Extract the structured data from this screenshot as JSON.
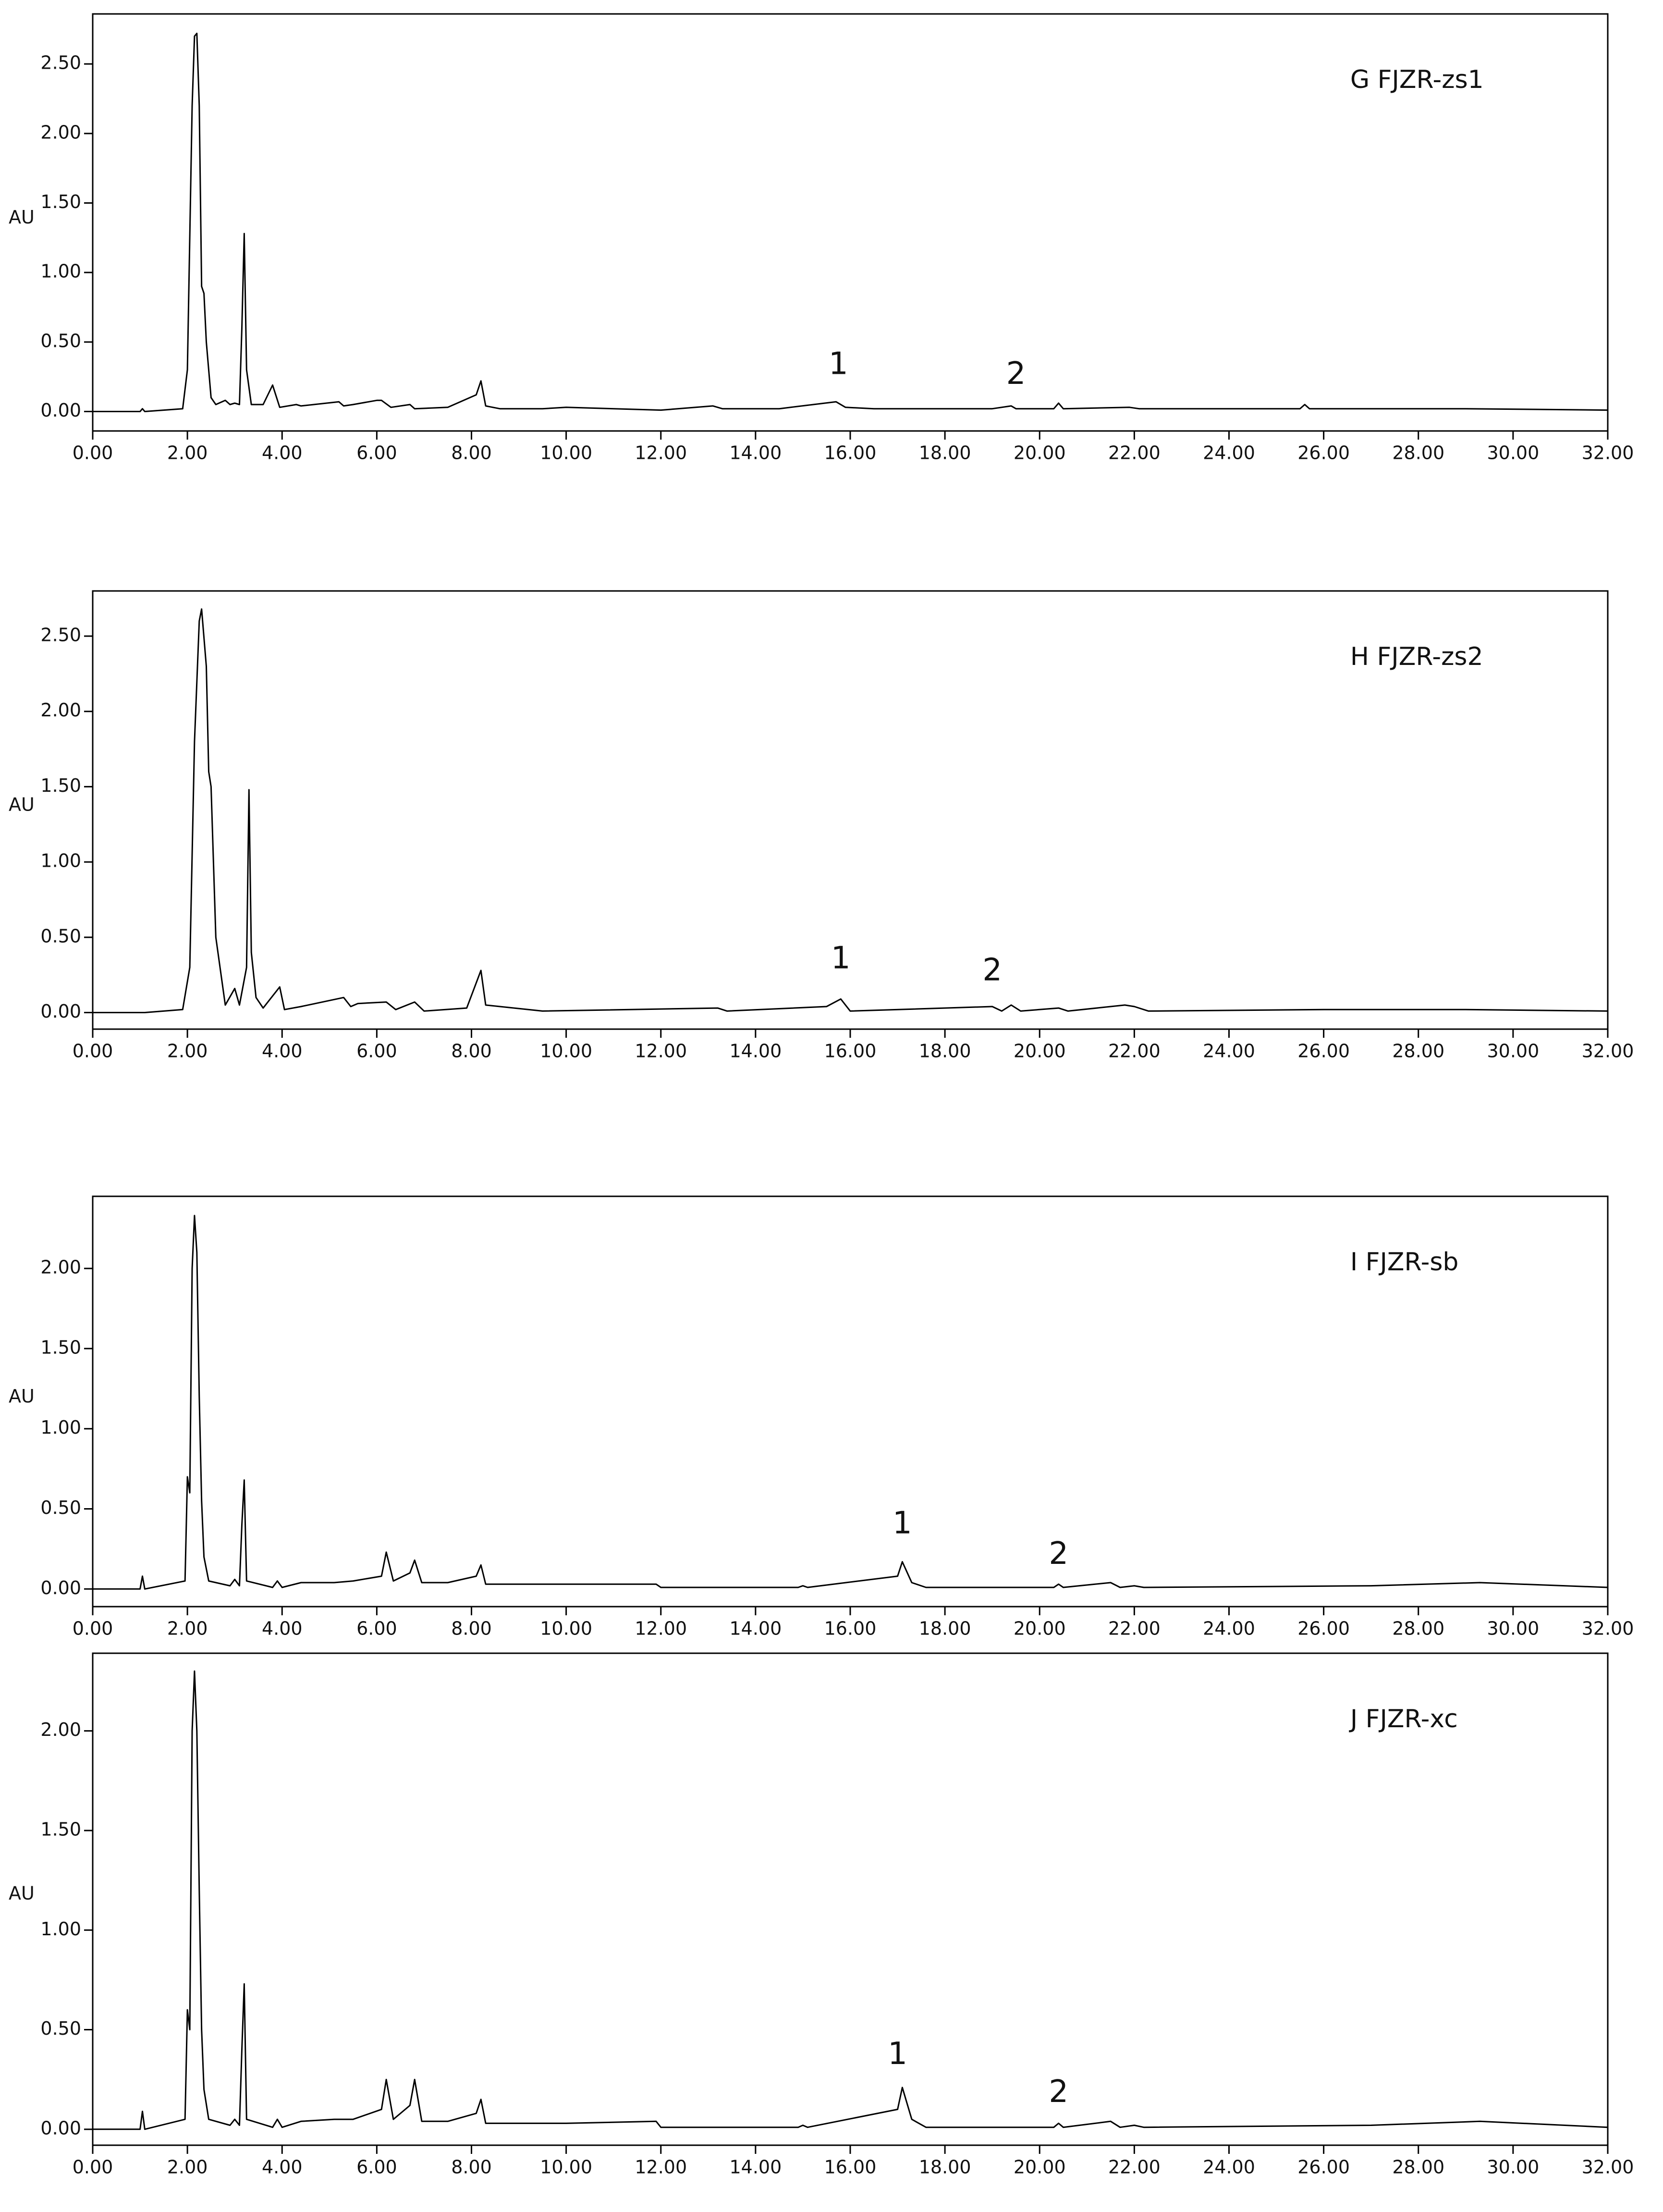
{
  "chart_data": [
    {
      "type": "line",
      "title": "G FJZR-zs1",
      "y_label": "AU",
      "color": "#000000",
      "x": [
        0,
        1.0,
        1.05,
        1.1,
        1.9,
        2.0,
        2.1,
        2.15,
        2.2,
        2.25,
        2.3,
        2.35,
        2.4,
        2.5,
        2.6,
        2.8,
        2.9,
        3.0,
        3.1,
        3.15,
        3.2,
        3.25,
        3.35,
        3.6,
        3.8,
        3.95,
        4.3,
        4.4,
        5.2,
        5.3,
        5.5,
        6.0,
        6.1,
        6.3,
        6.7,
        6.8,
        7.5,
        8.1,
        8.2,
        8.3,
        8.6,
        9.5,
        10.0,
        12.0,
        13.1,
        13.3,
        14.5,
        15.7,
        15.9,
        16.5,
        19.0,
        19.4,
        19.5,
        20.3,
        20.4,
        20.5,
        21.9,
        22.1,
        25.5,
        25.6,
        25.7,
        29.0,
        32.0
      ],
      "values": [
        0,
        0,
        0.02,
        0,
        0.02,
        0.3,
        2.2,
        2.7,
        2.72,
        2.2,
        0.9,
        0.85,
        0.5,
        0.1,
        0.05,
        0.08,
        0.05,
        0.06,
        0.05,
        0.6,
        1.28,
        0.3,
        0.05,
        0.05,
        0.19,
        0.03,
        0.05,
        0.04,
        0.07,
        0.04,
        0.05,
        0.08,
        0.08,
        0.03,
        0.05,
        0.02,
        0.03,
        0.12,
        0.22,
        0.04,
        0.02,
        0.02,
        0.03,
        0.01,
        0.04,
        0.02,
        0.02,
        0.07,
        0.03,
        0.02,
        0.02,
        0.04,
        0.02,
        0.02,
        0.06,
        0.02,
        0.03,
        0.02,
        0.02,
        0.05,
        0.02,
        0.02,
        0.01
      ],
      "annotations": [
        {
          "text": "1",
          "x": 15.75,
          "y": 0.33
        },
        {
          "text": "2",
          "x": 19.5,
          "y": 0.26
        }
      ],
      "xlim": [
        0,
        32
      ],
      "ylim": [
        -0.14,
        2.86
      ],
      "xticks": [
        {
          "value": 0,
          "label": "0.00"
        },
        {
          "value": 2,
          "label": "2.00"
        },
        {
          "value": 4,
          "label": "4.00"
        },
        {
          "value": 6,
          "label": "6.00"
        },
        {
          "value": 8,
          "label": "8.00"
        },
        {
          "value": 10,
          "label": "10.00"
        },
        {
          "value": 12,
          "label": "12.00"
        },
        {
          "value": 14,
          "label": "14.00"
        },
        {
          "value": 16,
          "label": "16.00"
        },
        {
          "value": 18,
          "label": "18.00"
        },
        {
          "value": 20,
          "label": "20.00"
        },
        {
          "value": 22,
          "label": "22.00"
        },
        {
          "value": 24,
          "label": "24.00"
        },
        {
          "value": 26,
          "label": "26.00"
        },
        {
          "value": 28,
          "label": "28.00"
        },
        {
          "value": 30,
          "label": "30.00"
        },
        {
          "value": 32,
          "label": "32.00"
        }
      ],
      "yticks": [
        {
          "value": 0,
          "label": "0.00"
        },
        {
          "value": 0.5,
          "label": "0.50"
        },
        {
          "value": 1,
          "label": "1.00"
        },
        {
          "value": 1.5,
          "label": "1.50"
        },
        {
          "value": 2,
          "label": "2.00"
        },
        {
          "value": 2.5,
          "label": "2.50"
        }
      ]
    },
    {
      "type": "line",
      "title": "H FJZR-zs2",
      "y_label": "AU",
      "color": "#000000",
      "x": [
        0,
        1.1,
        1.9,
        2.05,
        2.15,
        2.25,
        2.3,
        2.4,
        2.45,
        2.5,
        2.6,
        2.8,
        3.0,
        3.1,
        3.25,
        3.3,
        3.35,
        3.45,
        3.6,
        3.95,
        4.05,
        4.4,
        5.3,
        5.45,
        5.6,
        6.2,
        6.4,
        6.8,
        7.0,
        7.9,
        8.2,
        8.3,
        9.5,
        13.2,
        13.4,
        15.5,
        15.8,
        16.0,
        19.0,
        19.2,
        19.4,
        19.6,
        20.4,
        20.6,
        21.8,
        22.0,
        22.3,
        26.0,
        29.0,
        32.0
      ],
      "values": [
        0,
        0,
        0.02,
        0.3,
        1.8,
        2.6,
        2.68,
        2.3,
        1.6,
        1.5,
        0.5,
        0.05,
        0.16,
        0.05,
        0.3,
        1.48,
        0.4,
        0.1,
        0.03,
        0.17,
        0.02,
        0.04,
        0.1,
        0.04,
        0.06,
        0.07,
        0.02,
        0.07,
        0.01,
        0.03,
        0.28,
        0.05,
        0.01,
        0.03,
        0.01,
        0.04,
        0.09,
        0.01,
        0.04,
        0.01,
        0.05,
        0.01,
        0.03,
        0.01,
        0.05,
        0.04,
        0.01,
        0.02,
        0.02,
        0.01
      ],
      "annotations": [
        {
          "text": "1",
          "x": 15.8,
          "y": 0.35
        },
        {
          "text": "2",
          "x": 19.0,
          "y": 0.27
        }
      ],
      "xlim": [
        0,
        32
      ],
      "ylim": [
        -0.11,
        2.8
      ],
      "xticks": [
        {
          "value": 0,
          "label": "0.00"
        },
        {
          "value": 2,
          "label": "2.00"
        },
        {
          "value": 4,
          "label": "4.00"
        },
        {
          "value": 6,
          "label": "6.00"
        },
        {
          "value": 8,
          "label": "8.00"
        },
        {
          "value": 10,
          "label": "10.00"
        },
        {
          "value": 12,
          "label": "12.00"
        },
        {
          "value": 14,
          "label": "14.00"
        },
        {
          "value": 16,
          "label": "16.00"
        },
        {
          "value": 18,
          "label": "18.00"
        },
        {
          "value": 20,
          "label": "20.00"
        },
        {
          "value": 22,
          "label": "22.00"
        },
        {
          "value": 24,
          "label": "24.00"
        },
        {
          "value": 26,
          "label": "26.00"
        },
        {
          "value": 28,
          "label": "28.00"
        },
        {
          "value": 30,
          "label": "30.00"
        },
        {
          "value": 32,
          "label": "32.00"
        }
      ],
      "yticks": [
        {
          "value": 0,
          "label": "0.00"
        },
        {
          "value": 0.5,
          "label": "0.50"
        },
        {
          "value": 1,
          "label": "1.00"
        },
        {
          "value": 1.5,
          "label": "1.50"
        },
        {
          "value": 2,
          "label": "2.00"
        },
        {
          "value": 2.5,
          "label": "2.50"
        }
      ]
    },
    {
      "type": "line",
      "title": "I FJZR-sb",
      "y_label": "AU",
      "color": "#000000",
      "x": [
        0,
        1.0,
        1.05,
        1.1,
        1.95,
        2.0,
        2.05,
        2.1,
        2.15,
        2.2,
        2.25,
        2.3,
        2.35,
        2.45,
        2.9,
        3.0,
        3.1,
        3.15,
        3.2,
        3.25,
        3.8,
        3.9,
        4.0,
        4.4,
        5.1,
        5.5,
        6.1,
        6.2,
        6.35,
        6.7,
        6.8,
        6.95,
        7.5,
        8.1,
        8.2,
        8.3,
        9.0,
        10.0,
        11.9,
        12.0,
        14.9,
        15.0,
        15.1,
        17.0,
        17.1,
        17.3,
        17.6,
        20.3,
        20.4,
        20.5,
        21.5,
        21.7,
        22.0,
        22.2,
        27.0,
        29.3,
        32.0
      ],
      "values": [
        0,
        0,
        0.08,
        0,
        0.05,
        0.7,
        0.6,
        2.0,
        2.33,
        2.1,
        1.2,
        0.55,
        0.2,
        0.05,
        0.02,
        0.06,
        0.02,
        0.4,
        0.68,
        0.05,
        0.01,
        0.05,
        0.01,
        0.04,
        0.04,
        0.05,
        0.08,
        0.23,
        0.05,
        0.1,
        0.18,
        0.04,
        0.04,
        0.08,
        0.15,
        0.03,
        0.03,
        0.03,
        0.03,
        0.01,
        0.01,
        0.02,
        0.01,
        0.08,
        0.17,
        0.04,
        0.01,
        0.01,
        0.03,
        0.01,
        0.04,
        0.01,
        0.02,
        0.01,
        0.02,
        0.04,
        0.01
      ],
      "annotations": [
        {
          "text": "1",
          "x": 17.1,
          "y": 0.4
        },
        {
          "text": "2",
          "x": 20.4,
          "y": 0.21
        }
      ],
      "xlim": [
        0,
        32
      ],
      "ylim": [
        -0.11,
        2.45
      ],
      "xticks": [
        {
          "value": 0,
          "label": "0.00"
        },
        {
          "value": 2,
          "label": "2.00"
        },
        {
          "value": 4,
          "label": "4.00"
        },
        {
          "value": 6,
          "label": "6.00"
        },
        {
          "value": 8,
          "label": "8.00"
        },
        {
          "value": 10,
          "label": "10.00"
        },
        {
          "value": 12,
          "label": "12.00"
        },
        {
          "value": 14,
          "label": "14.00"
        },
        {
          "value": 16,
          "label": "16.00"
        },
        {
          "value": 18,
          "label": "18.00"
        },
        {
          "value": 20,
          "label": "20.00"
        },
        {
          "value": 22,
          "label": "22.00"
        },
        {
          "value": 24,
          "label": "24.00"
        },
        {
          "value": 26,
          "label": "26.00"
        },
        {
          "value": 28,
          "label": "28.00"
        },
        {
          "value": 30,
          "label": "30.00"
        },
        {
          "value": 32,
          "label": "32.00"
        }
      ],
      "yticks": [
        {
          "value": 0,
          "label": "0.00"
        },
        {
          "value": 0.5,
          "label": "0.50"
        },
        {
          "value": 1,
          "label": "1.00"
        },
        {
          "value": 1.5,
          "label": "1.50"
        },
        {
          "value": 2,
          "label": "2.00"
        }
      ]
    },
    {
      "type": "line",
      "title": "J FJZR-xc",
      "y_label": "AU",
      "color": "#000000",
      "x": [
        0,
        1.0,
        1.05,
        1.1,
        1.95,
        2.0,
        2.05,
        2.1,
        2.15,
        2.2,
        2.25,
        2.3,
        2.35,
        2.45,
        2.9,
        3.0,
        3.1,
        3.15,
        3.2,
        3.25,
        3.8,
        3.9,
        4.0,
        4.4,
        5.1,
        5.5,
        6.1,
        6.2,
        6.35,
        6.7,
        6.8,
        6.95,
        7.5,
        8.1,
        8.2,
        8.3,
        9.0,
        10.0,
        11.9,
        12.0,
        14.9,
        15.0,
        15.1,
        17.0,
        17.1,
        17.3,
        17.6,
        20.3,
        20.4,
        20.5,
        21.5,
        21.7,
        22.0,
        22.2,
        27.0,
        29.3,
        32.0
      ],
      "values": [
        0,
        0,
        0.09,
        0,
        0.05,
        0.6,
        0.5,
        2.0,
        2.3,
        2.0,
        1.2,
        0.5,
        0.2,
        0.05,
        0.02,
        0.05,
        0.02,
        0.4,
        0.73,
        0.05,
        0.01,
        0.05,
        0.01,
        0.04,
        0.05,
        0.05,
        0.1,
        0.25,
        0.05,
        0.12,
        0.25,
        0.04,
        0.04,
        0.08,
        0.15,
        0.03,
        0.03,
        0.03,
        0.04,
        0.01,
        0.01,
        0.02,
        0.01,
        0.1,
        0.21,
        0.05,
        0.01,
        0.01,
        0.03,
        0.01,
        0.04,
        0.01,
        0.02,
        0.01,
        0.02,
        0.04,
        0.01
      ],
      "annotations": [
        {
          "text": "1",
          "x": 17.0,
          "y": 0.37
        },
        {
          "text": "2",
          "x": 20.4,
          "y": 0.18
        }
      ],
      "xlim": [
        0,
        32
      ],
      "ylim": [
        -0.08,
        2.39
      ],
      "xticks": [
        {
          "value": 0,
          "label": "0.00"
        },
        {
          "value": 2,
          "label": "2.00"
        },
        {
          "value": 4,
          "label": "4.00"
        },
        {
          "value": 6,
          "label": "6.00"
        },
        {
          "value": 8,
          "label": "8.00"
        },
        {
          "value": 10,
          "label": "10.00"
        },
        {
          "value": 12,
          "label": "12.00"
        },
        {
          "value": 14,
          "label": "14.00"
        },
        {
          "value": 16,
          "label": "16.00"
        },
        {
          "value": 18,
          "label": "18.00"
        },
        {
          "value": 20,
          "label": "20.00"
        },
        {
          "value": 22,
          "label": "22.00"
        },
        {
          "value": 24,
          "label": "24.00"
        },
        {
          "value": 26,
          "label": "26.00"
        },
        {
          "value": 28,
          "label": "28.00"
        },
        {
          "value": 30,
          "label": "30.00"
        },
        {
          "value": 32,
          "label": "32.00"
        }
      ],
      "yticks": [
        {
          "value": 0,
          "label": "0.00"
        },
        {
          "value": 0.5,
          "label": "0.50"
        },
        {
          "value": 1,
          "label": "1.00"
        },
        {
          "value": 1.5,
          "label": "1.50"
        },
        {
          "value": 2,
          "label": "2.00"
        }
      ]
    }
  ]
}
